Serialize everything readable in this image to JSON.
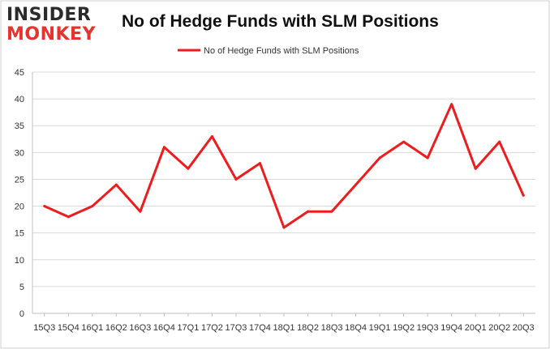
{
  "logo": {
    "line1": "INSIDER",
    "line2": "MONKEY"
  },
  "chart_data": {
    "type": "line",
    "title": "No of Hedge Funds with SLM Positions",
    "xlabel": "",
    "ylabel": "",
    "ylim": [
      0,
      45
    ],
    "yticks": [
      0,
      5,
      10,
      15,
      20,
      25,
      30,
      35,
      40,
      45
    ],
    "grid": true,
    "legend_position": "top-center",
    "categories": [
      "15Q3",
      "15Q4",
      "16Q1",
      "16Q2",
      "16Q3",
      "16Q4",
      "17Q1",
      "17Q2",
      "17Q3",
      "17Q4",
      "18Q1",
      "18Q2",
      "18Q3",
      "18Q4",
      "19Q1",
      "19Q2",
      "19Q3",
      "19Q4",
      "20Q1",
      "20Q2",
      "20Q3"
    ],
    "series": [
      {
        "name": "No of Hedge Funds with SLM Positions",
        "color": "#ee1c1c",
        "values": [
          20,
          18,
          20,
          24,
          19,
          31,
          27,
          33,
          25,
          28,
          16,
          19,
          19,
          24,
          29,
          32,
          29,
          39,
          27,
          32,
          22
        ]
      }
    ]
  }
}
